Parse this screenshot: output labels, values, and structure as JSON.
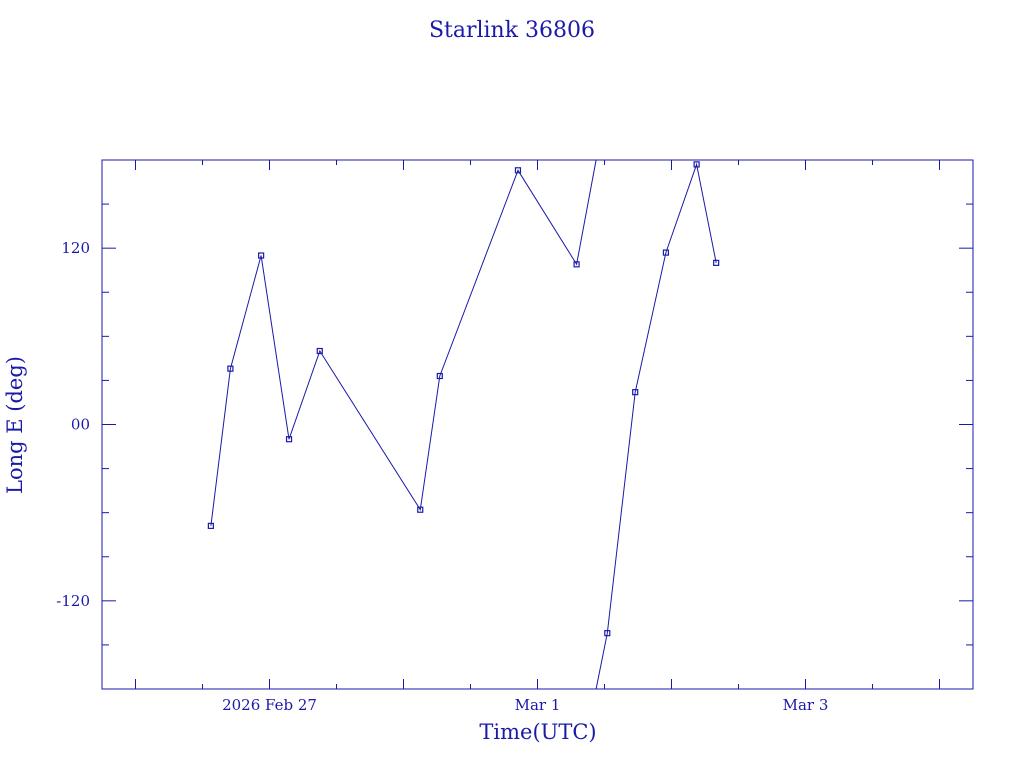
{
  "chart_data": {
    "type": "line",
    "title": "Starlink 36806",
    "xlabel": "Time(UTC)",
    "ylabel": "Long E (deg)",
    "xlim": [
      "2026-02-25 18:00",
      "2026-03-04 06:00"
    ],
    "ylim": [
      -180,
      180
    ],
    "x_tick_labels": [
      {
        "label": "2026 Feb 27",
        "x": "2026-02-27 00:00"
      },
      {
        "label": "Mar  1",
        "x": "2026-03-01 00:00"
      },
      {
        "label": "Mar  3",
        "x": "2026-03-03 00:00"
      }
    ],
    "y_ticks": [
      -120,
      0,
      120
    ],
    "y_tick_labels": [
      "-120",
      "00",
      "120"
    ],
    "grid": false,
    "color": "#1a1aa8",
    "series": [
      {
        "points": [
          {
            "x": "2026-02-26 13:30",
            "y": -69
          },
          {
            "x": "2026-02-26 17:00",
            "y": 38
          },
          {
            "x": "2026-02-26 22:30",
            "y": 115
          },
          {
            "x": "2026-02-27 03:30",
            "y": -10
          },
          {
            "x": "2026-02-27 09:00",
            "y": 50
          },
          {
            "x": "2026-02-28 03:00",
            "y": -58
          },
          {
            "x": "2026-02-28 06:30",
            "y": 33
          },
          {
            "x": "2026-02-28 20:30",
            "y": 173
          },
          {
            "x": "2026-03-01 07:00",
            "y": 109
          },
          {
            "x": "2026-03-01 10:30",
            "y": 180
          },
          {
            "x": "2026-03-01 10:30",
            "y": -180
          },
          {
            "x": "2026-03-01 12:30",
            "y": -142
          },
          {
            "x": "2026-03-01 17:30",
            "y": 22
          },
          {
            "x": "2026-03-01 23:00",
            "y": 117
          },
          {
            "x": "2026-03-02 04:30",
            "y": 177
          },
          {
            "x": "2026-03-02 08:00",
            "y": 110
          }
        ]
      }
    ]
  }
}
